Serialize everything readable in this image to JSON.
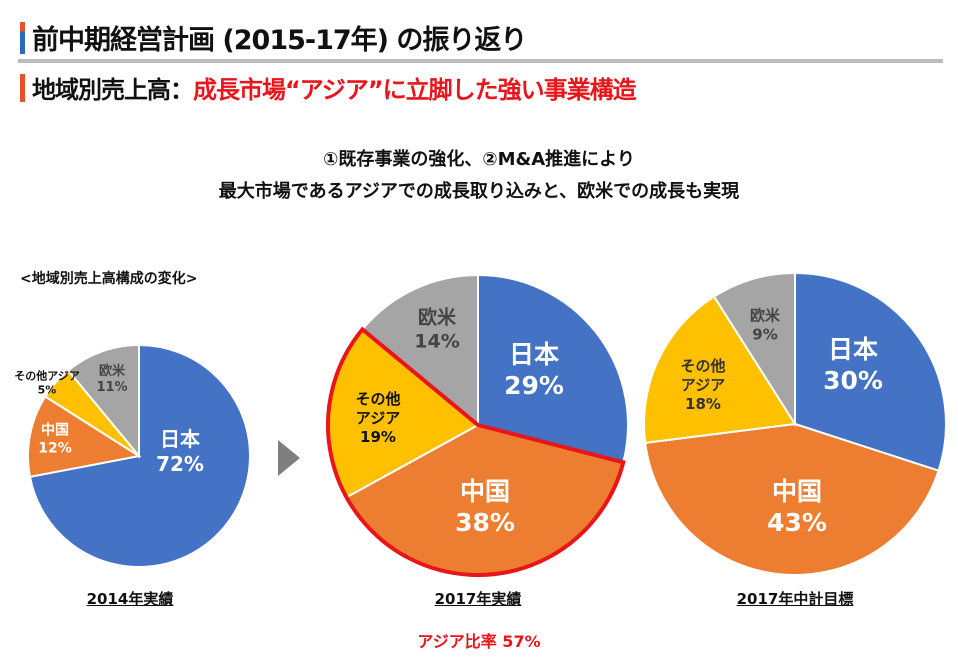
{
  "header": {
    "title": "前中期経営計画 (2015-17年) の振り返り",
    "subtitle_prefix": "地域別売上高：",
    "subtitle_highlight": "成長市場“アジア”に立脚した強い事業構造"
  },
  "lead": {
    "line1": "①既存事業の強化、②M&A推進により",
    "line2": "最大市場であるアジアでの成長取り込みと、欧米での成長も実現"
  },
  "section_label": "<地域別売上高構成の変化>",
  "colors": {
    "japan": "#4472C4",
    "china": "#ED7D31",
    "other_asia": "#FFC000",
    "west": "#A5A5A5",
    "highlight": "#E8161B"
  },
  "chart_data": [
    {
      "type": "pie",
      "title": "2014年実績",
      "categories": [
        "日本",
        "中国",
        "その他アジア",
        "欧米"
      ],
      "values": [
        72,
        12,
        5,
        11
      ],
      "labels": [
        "72%",
        "12%",
        "5%",
        "11%"
      ]
    },
    {
      "type": "pie",
      "title": "2017年実績",
      "categories": [
        "日本",
        "中国",
        "その他アジア",
        "欧米"
      ],
      "values": [
        29,
        38,
        19,
        14
      ],
      "labels": [
        "29%",
        "38%",
        "19%",
        "14%"
      ],
      "highlighted": [
        "中国",
        "その他アジア"
      ],
      "annotation": "アジア比率 57%"
    },
    {
      "type": "pie",
      "title": "2017年中計目標",
      "categories": [
        "日本",
        "中国",
        "その他アジア",
        "欧米"
      ],
      "values": [
        30,
        43,
        18,
        9
      ],
      "labels": [
        "30%",
        "43%",
        "18%",
        "9%"
      ]
    }
  ],
  "labels": {
    "other_asia_l1": "その他",
    "other_asia_l2": "アジア"
  }
}
